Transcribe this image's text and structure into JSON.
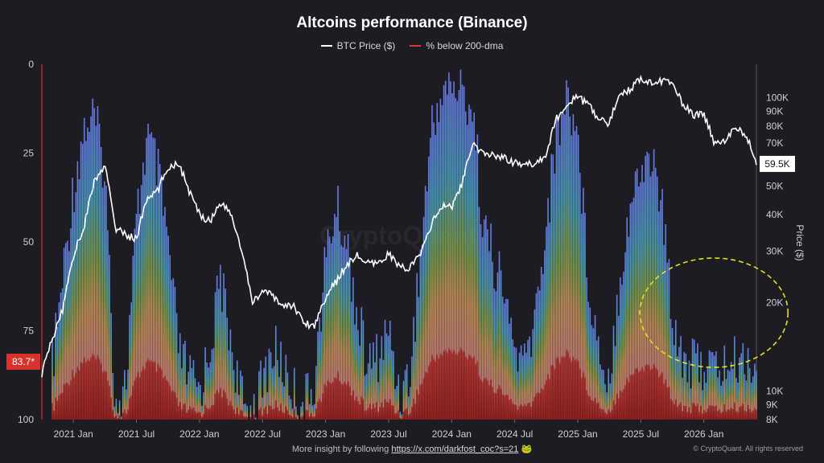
{
  "header": {
    "title": "Altcoins performance (Binance)"
  },
  "legend": {
    "btc_label": "BTC Price ($)",
    "pct_label": "% below 200-dma",
    "btc_color": "#ffffff",
    "pct_color": "#d93a33"
  },
  "watermark": "CryptoQuant",
  "footer": {
    "text": "More insight by following ",
    "link": "https://x.com/darkfost_coc?s=21",
    "emoji": "🐸",
    "copyright": "© CryptoQuant. All rights reserved"
  },
  "chart_data": {
    "type": "line",
    "x_axis": {
      "start": "2020-10",
      "end": "2026-06",
      "ticks": [
        "2021 Jan",
        "2021 Jul",
        "2022 Jan",
        "2022 Jul",
        "2023 Jan",
        "2023 Jul",
        "2024 Jan",
        "2024 Jul",
        "2025 Jan",
        "2025 Jul",
        "2026 Jan"
      ]
    },
    "left_axis": {
      "label": "",
      "range": [
        0,
        100
      ],
      "inverted": true,
      "ticks": [
        "0",
        "25",
        "50",
        "75",
        "100"
      ]
    },
    "right_axis": {
      "label": "Price ($)",
      "scale": "log",
      "range": [
        8000,
        130000
      ],
      "ticks": [
        "100K",
        "90K",
        "80K",
        "70K",
        "60K",
        "50K",
        "40K",
        "30K",
        "20K",
        "10K",
        "9K",
        "8K"
      ]
    },
    "current_values": {
      "pct_label": "83.7*",
      "btc_label": "59.5K"
    },
    "threshold": 80,
    "annotation": "dashed yellow ellipse around 2025 Oct – 2026 Jun low-performance region",
    "series": [
      {
        "name": "BTC Price ($)",
        "x": [
          "2020-10",
          "2020-11",
          "2020-12",
          "2021-01",
          "2021-02",
          "2021-03",
          "2021-04",
          "2021-05",
          "2021-06",
          "2021-07",
          "2021-08",
          "2021-09",
          "2021-10",
          "2021-11",
          "2021-12",
          "2022-01",
          "2022-02",
          "2022-03",
          "2022-04",
          "2022-05",
          "2022-06",
          "2022-07",
          "2022-08",
          "2022-09",
          "2022-10",
          "2022-11",
          "2022-12",
          "2023-01",
          "2023-02",
          "2023-03",
          "2023-04",
          "2023-05",
          "2023-06",
          "2023-07",
          "2023-08",
          "2023-09",
          "2023-10",
          "2023-11",
          "2023-12",
          "2024-01",
          "2024-02",
          "2024-03",
          "2024-04",
          "2024-05",
          "2024-06",
          "2024-07",
          "2024-08",
          "2024-09",
          "2024-10",
          "2024-11",
          "2024-12",
          "2025-01",
          "2025-02",
          "2025-03",
          "2025-04",
          "2025-05",
          "2025-06",
          "2025-07",
          "2025-08",
          "2025-09",
          "2025-10",
          "2025-11",
          "2025-12",
          "2026-01",
          "2026-02",
          "2026-03",
          "2026-04",
          "2026-05",
          "2026-06"
        ],
        "values": [
          11500,
          15000,
          19000,
          29000,
          36000,
          52000,
          58000,
          36000,
          34000,
          33000,
          45000,
          48000,
          58000,
          60000,
          48000,
          40000,
          38000,
          44000,
          40000,
          30000,
          20000,
          22000,
          21000,
          19500,
          19500,
          17000,
          16800,
          21000,
          23500,
          27000,
          29000,
          27200,
          27000,
          29500,
          26500,
          26300,
          29000,
          36500,
          42500,
          42500,
          51000,
          69000,
          64000,
          64000,
          62500,
          60000,
          59000,
          60000,
          64000,
          85000,
          96000,
          100000,
          95000,
          84000,
          82000,
          104000,
          107000,
          117000,
          113000,
          114000,
          111000,
          95000,
          87000,
          88000,
          70000,
          72000,
          78000,
          75000,
          59500
        ]
      },
      {
        "name": "% below 200-dma",
        "x": [
          "2020-10",
          "2020-11",
          "2020-12",
          "2021-01",
          "2021-02",
          "2021-03",
          "2021-04",
          "2021-05",
          "2021-06",
          "2021-07",
          "2021-08",
          "2021-09",
          "2021-10",
          "2021-11",
          "2021-12",
          "2022-01",
          "2022-02",
          "2022-03",
          "2022-04",
          "2022-05",
          "2022-06",
          "2022-07",
          "2022-08",
          "2022-09",
          "2022-10",
          "2022-11",
          "2022-12",
          "2023-01",
          "2023-02",
          "2023-03",
          "2023-04",
          "2023-05",
          "2023-06",
          "2023-07",
          "2023-08",
          "2023-09",
          "2023-10",
          "2023-11",
          "2023-12",
          "2024-01",
          "2024-02",
          "2024-03",
          "2024-04",
          "2024-05",
          "2024-06",
          "2024-07",
          "2024-08",
          "2024-09",
          "2024-10",
          "2024-11",
          "2024-12",
          "2025-01",
          "2025-02",
          "2025-03",
          "2025-04",
          "2025-05",
          "2025-06",
          "2025-07",
          "2025-08",
          "2025-09",
          "2025-10",
          "2025-11",
          "2025-12",
          "2026-01",
          "2026-02",
          "2026-03",
          "2026-04",
          "2026-05",
          "2026-06"
        ],
        "values": [
          30,
          85,
          60,
          35,
          18,
          15,
          30,
          95,
          90,
          45,
          20,
          30,
          50,
          80,
          88,
          92,
          80,
          60,
          78,
          95,
          98,
          90,
          80,
          85,
          92,
          96,
          88,
          55,
          40,
          50,
          70,
          85,
          82,
          75,
          92,
          88,
          55,
          20,
          8,
          6,
          8,
          12,
          45,
          55,
          65,
          80,
          85,
          70,
          45,
          20,
          8,
          20,
          60,
          80,
          88,
          60,
          40,
          30,
          25,
          40,
          70,
          82,
          85,
          84,
          86,
          85,
          84,
          83,
          84
        ]
      }
    ]
  }
}
